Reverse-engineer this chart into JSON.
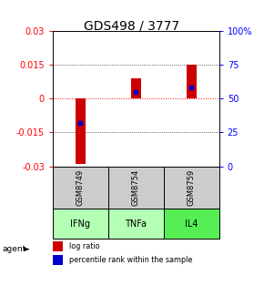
{
  "title": "GDS498 / 3777",
  "samples": [
    "GSM8749",
    "GSM8754",
    "GSM8759"
  ],
  "agents": [
    "IFNg",
    "TNFa",
    "IL4"
  ],
  "log_ratios": [
    -0.029,
    0.009,
    0.015
  ],
  "percentile_ranks": [
    32,
    55,
    58
  ],
  "ylim": [
    -0.03,
    0.03
  ],
  "yticks_left": [
    -0.03,
    -0.015,
    0,
    0.015,
    0.03
  ],
  "yticks_right": [
    0,
    25,
    50,
    75,
    100
  ],
  "bar_color": "#cc0000",
  "dot_color": "#0000cc",
  "agent_colors": [
    "#b3ffb3",
    "#b3ffb3",
    "#66ff66"
  ],
  "sample_bg_color": "#cccccc",
  "legend_log_color": "#cc0000",
  "legend_pct_color": "#0000cc",
  "title_fontsize": 10,
  "tick_fontsize": 7,
  "label_fontsize": 7,
  "bar_width": 0.18
}
